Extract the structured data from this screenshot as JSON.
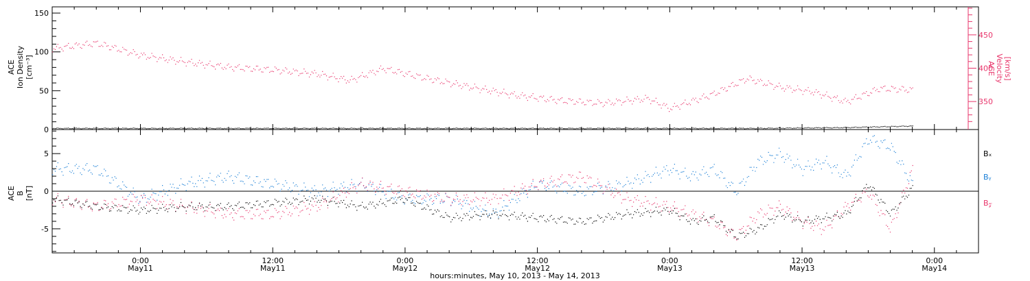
{
  "colors": {
    "axis": "#000000",
    "density": "#000000",
    "velocity": "#e8356b",
    "bx": "#000000",
    "by": "#1a7fd6",
    "bz": "#e8356b"
  },
  "chart_data": [
    {
      "type": "scatter",
      "panel": "top",
      "left_axis": {
        "label_line1": "ACE",
        "label_line2": "Ion Density",
        "label_line3": "[cm⁻³]",
        "ylim": [
          0,
          158
        ],
        "ticks": [
          "0",
          "50",
          "100",
          "150"
        ]
      },
      "right_axis": {
        "label_line1": "ACE",
        "label_line2": "Velocity",
        "label_line3": "[km/s]",
        "ylim": [
          308,
          492
        ],
        "ticks": [
          "350",
          "400",
          "450"
        ]
      },
      "xlim_hours": [
        -8,
        76
      ],
      "series": [
        {
          "id": "density",
          "axis": "left",
          "x_hours": [
            -8,
            0,
            8,
            16,
            24,
            32,
            40,
            48,
            56,
            64,
            70
          ],
          "values": [
            2,
            2,
            2,
            2,
            2,
            2,
            2,
            2,
            2,
            3,
            5
          ]
        },
        {
          "id": "velocity",
          "axis": "right",
          "x_hours": [
            -8,
            -4,
            0,
            4,
            8,
            12,
            16,
            19,
            22,
            26,
            30,
            34,
            38,
            42,
            46,
            48,
            52,
            55,
            58,
            61,
            64,
            67,
            70
          ],
          "values": [
            430,
            438,
            420,
            410,
            402,
            398,
            392,
            382,
            400,
            385,
            372,
            360,
            352,
            348,
            355,
            340,
            362,
            385,
            372,
            365,
            350,
            370,
            368
          ]
        }
      ]
    },
    {
      "type": "scatter",
      "panel": "bottom",
      "axis": {
        "label_line1": "ACE",
        "label_line2": "B",
        "label_line3": "[nT]",
        "ylim": [
          -8.2,
          8.2
        ],
        "ticks": [
          "-5",
          "0",
          "5"
        ]
      },
      "xlim_hours": [
        -8,
        76
      ],
      "series": [
        {
          "id": "bx",
          "name": "Bₓ",
          "x_hours": [
            -8,
            -4,
            0,
            4,
            8,
            12,
            16,
            20,
            24,
            28,
            32,
            36,
            40,
            44,
            48,
            50,
            52,
            54,
            56,
            58,
            60,
            62,
            64,
            66,
            68,
            70
          ],
          "values": [
            -1,
            -2,
            -2.5,
            -2,
            -2,
            -1.5,
            -1,
            -2,
            -1,
            -3.5,
            -3,
            -3.5,
            -4,
            -3,
            -2.5,
            -4,
            -3.5,
            -6,
            -5,
            -3,
            -4,
            -3.5,
            -3,
            1,
            -3,
            0.5
          ]
        },
        {
          "id": "by",
          "name": "Bᵧ",
          "x_hours": [
            -8,
            -4,
            0,
            4,
            8,
            12,
            16,
            20,
            24,
            28,
            32,
            36,
            40,
            44,
            48,
            50,
            52,
            54,
            56,
            58,
            60,
            62,
            64,
            66,
            68,
            70
          ],
          "values": [
            3,
            3,
            -1,
            1,
            2,
            1,
            0,
            1,
            -1,
            -1,
            -3,
            1,
            0,
            1,
            3,
            2,
            3,
            0,
            4,
            5,
            3,
            4,
            2,
            7,
            6,
            1
          ]
        },
        {
          "id": "bz",
          "name": "B𝓏",
          "x_hours": [
            -8,
            -4,
            0,
            4,
            8,
            12,
            16,
            20,
            24,
            28,
            32,
            36,
            40,
            44,
            48,
            50,
            52,
            54,
            56,
            58,
            60,
            62,
            64,
            66,
            68,
            70
          ],
          "values": [
            -1,
            -2,
            -1,
            -2,
            -3,
            -3,
            -2,
            1,
            0,
            -1,
            -1,
            1,
            2,
            -1,
            -2,
            -3,
            -4,
            -6,
            -3,
            -2,
            -4,
            -5,
            -2,
            0,
            -5,
            3
          ]
        }
      ]
    }
  ],
  "x_axis": {
    "title": "hours:minutes, May 10, 2013 - May 14, 2013",
    "ticks": [
      {
        "hour": 0,
        "time": "0:00",
        "date": "May11"
      },
      {
        "hour": 12,
        "time": "12:00",
        "date": "May11"
      },
      {
        "hour": 24,
        "time": "0:00",
        "date": "May12"
      },
      {
        "hour": 36,
        "time": "12:00",
        "date": "May12"
      },
      {
        "hour": 48,
        "time": "0:00",
        "date": "May13"
      },
      {
        "hour": 60,
        "time": "12:00",
        "date": "May13"
      },
      {
        "hour": 72,
        "time": "0:00",
        "date": "May14"
      }
    ]
  }
}
